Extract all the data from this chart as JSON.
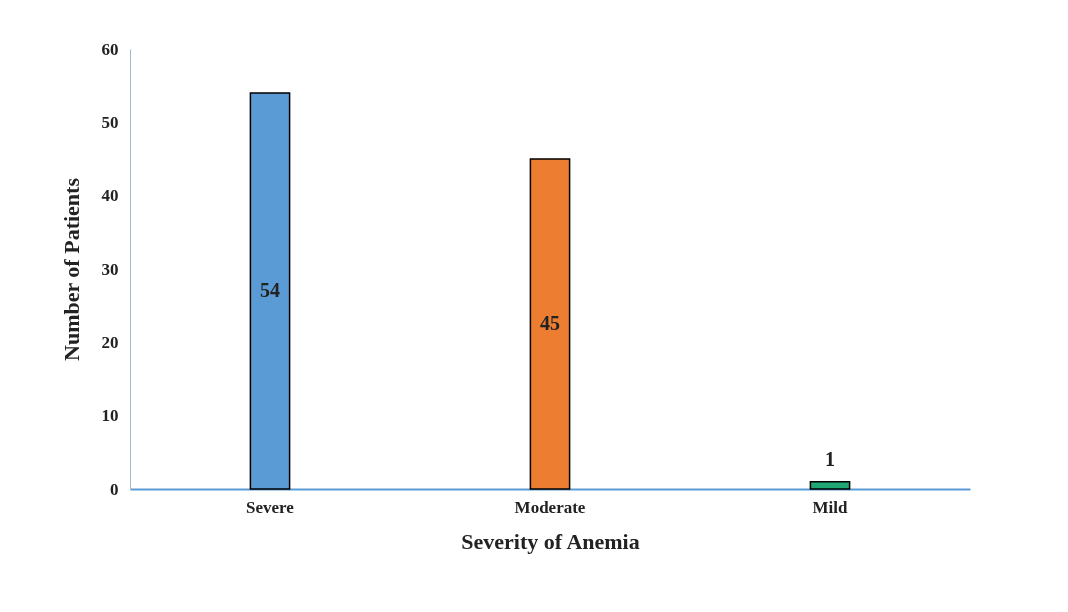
{
  "chart_data": {
    "type": "bar",
    "xlabel": "Severity of Anemia",
    "ylabel": "Number of Patients",
    "categories": [
      "Severe",
      "Moderate",
      "Mild"
    ],
    "values": [
      54,
      45,
      1
    ],
    "colors": [
      "#5b9bd5",
      "#ed7d31",
      "#1fa774"
    ],
    "ylim": [
      0,
      60
    ],
    "yticks": [
      0,
      10,
      20,
      30,
      40,
      50,
      60
    ],
    "grid": false,
    "data_labels": true
  }
}
